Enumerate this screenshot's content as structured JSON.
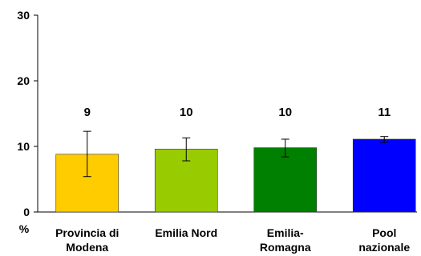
{
  "chart_data": {
    "type": "bar",
    "categories": [
      [
        "Provincia di",
        "Modena"
      ],
      [
        "Emilia Nord"
      ],
      [
        "Emilia-",
        "Romagna"
      ],
      [
        "Pool",
        "nazionale"
      ]
    ],
    "values": [
      8.8,
      9.6,
      9.8,
      11.1
    ],
    "data_labels": [
      "9",
      "10",
      "10",
      "11"
    ],
    "error_low": [
      5.4,
      7.8,
      8.4,
      10.6
    ],
    "error_high": [
      12.3,
      11.3,
      11.1,
      11.5
    ],
    "colors": [
      "#FFCC00",
      "#99CC00",
      "#008000",
      "#0000FF"
    ],
    "ylim": [
      0,
      30
    ],
    "yticks": [
      0,
      10,
      20,
      30
    ],
    "ylabel": "%",
    "grid": false,
    "legend": "none"
  }
}
